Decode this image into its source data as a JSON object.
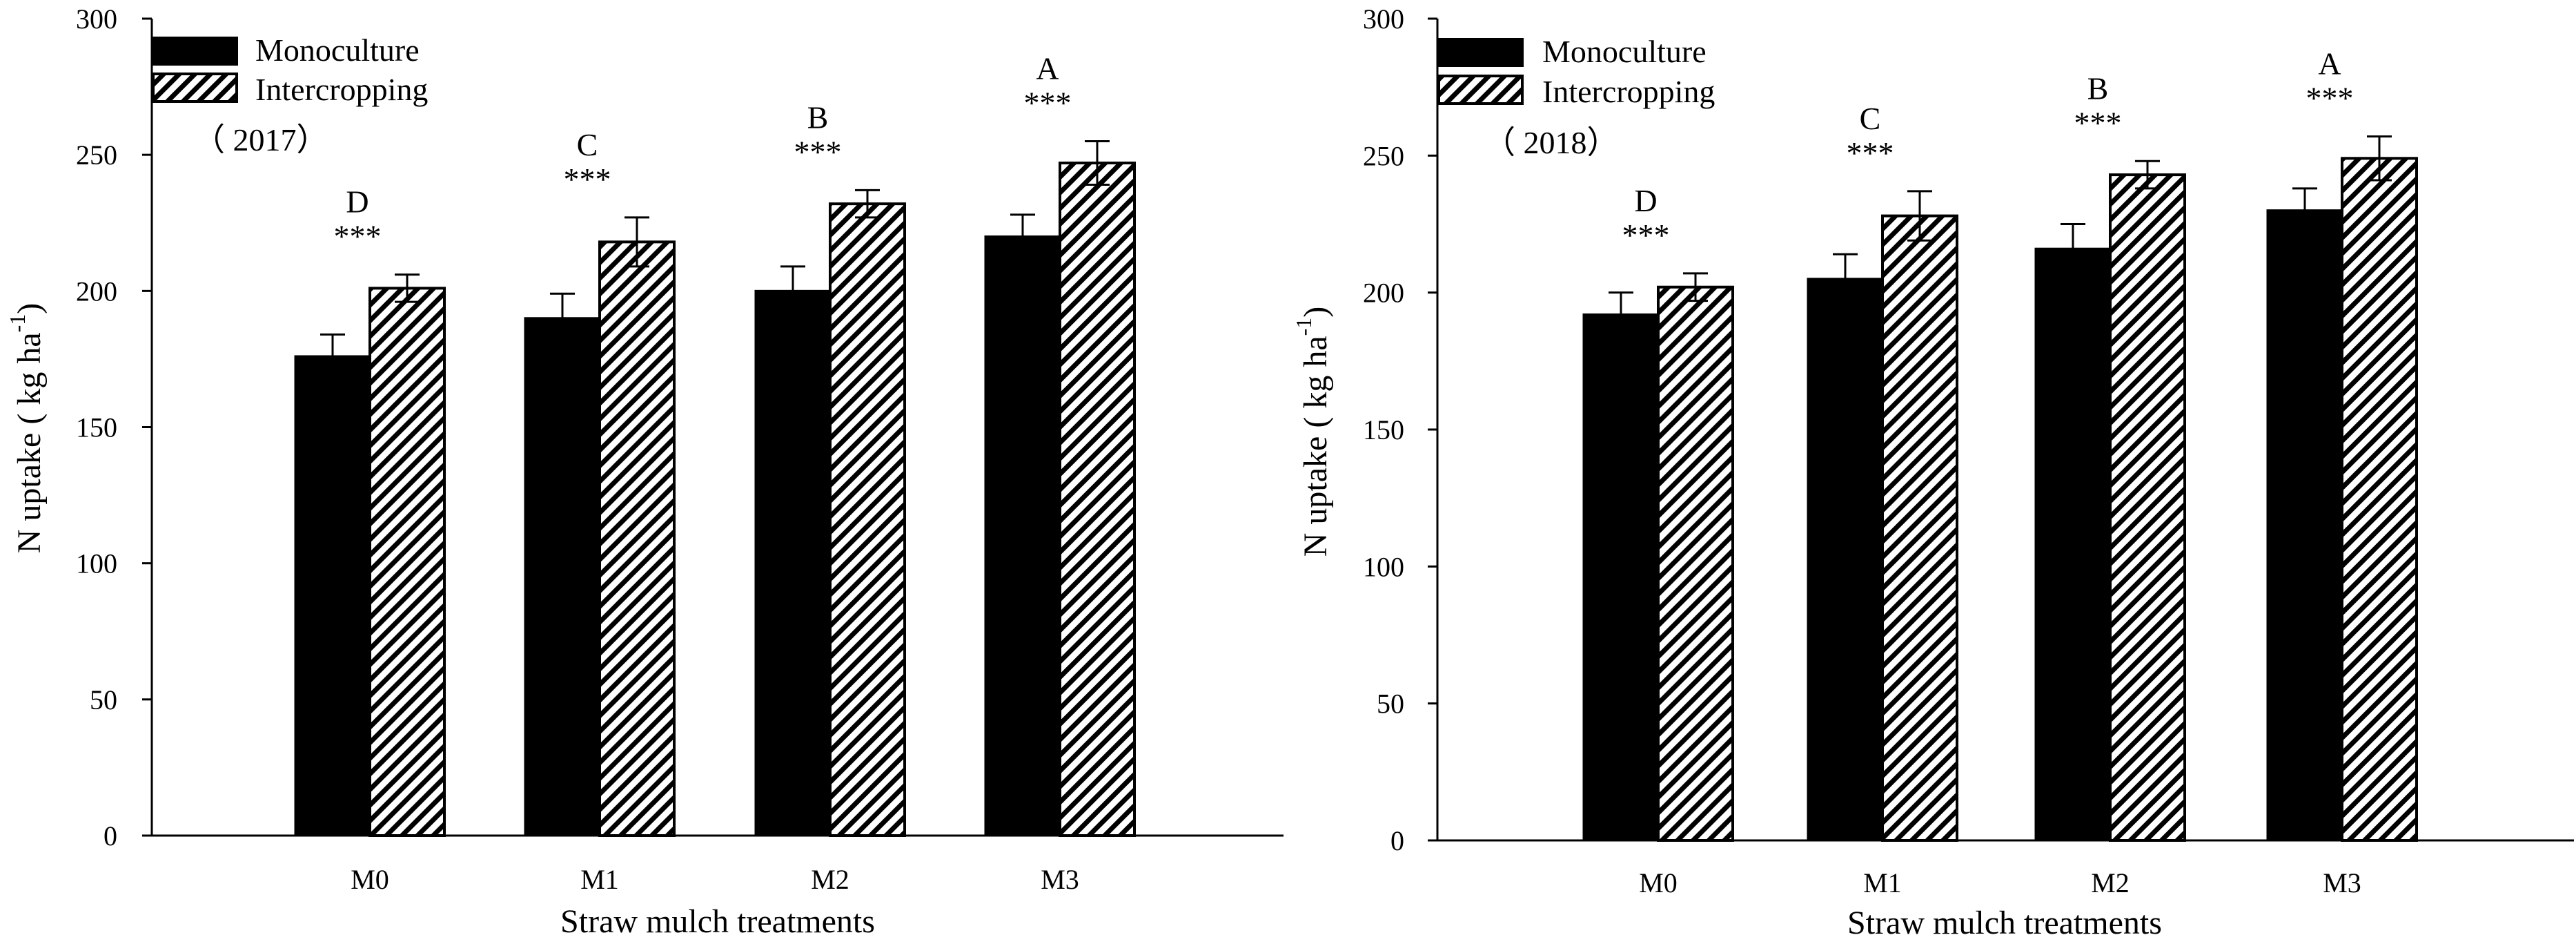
{
  "chart_data": [
    {
      "type": "bar",
      "year_label": "（ 2017）",
      "categories": [
        "M0",
        "M1",
        "M2",
        "M3"
      ],
      "series": [
        {
          "name": "Monoculture",
          "values": [
            176,
            190,
            200,
            220
          ],
          "errors": [
            8,
            9,
            9,
            8
          ]
        },
        {
          "name": "Intercropping",
          "values": [
            201,
            218,
            232,
            247
          ],
          "errors": [
            5,
            9,
            5,
            8
          ]
        }
      ],
      "group_letters": [
        "D",
        "C",
        "B",
        "A"
      ],
      "significance": [
        "***",
        "***",
        "***",
        "***"
      ],
      "xlabel": "Straw mulch treatments",
      "ylabel": "N uptake ( kg ha",
      "ylabel_superscript": "-1",
      "ylabel_close": ")",
      "ylim": [
        0,
        300
      ],
      "yticks": [
        "0",
        "50",
        "100",
        "150",
        "200",
        "250",
        "300"
      ],
      "legend_position": "top-left"
    },
    {
      "type": "bar",
      "year_label": "（ 2018）",
      "categories": [
        "M0",
        "M1",
        "M2",
        "M3"
      ],
      "series": [
        {
          "name": "Monoculture",
          "values": [
            192,
            205,
            216,
            230
          ],
          "errors": [
            8,
            9,
            9,
            8
          ]
        },
        {
          "name": "Intercropping",
          "values": [
            202,
            228,
            243,
            249
          ],
          "errors": [
            5,
            9,
            5,
            8
          ]
        }
      ],
      "group_letters": [
        "D",
        "C",
        "B",
        "A"
      ],
      "significance": [
        "***",
        "***",
        "***",
        "***"
      ],
      "xlabel": "Straw mulch treatments",
      "ylabel": "N uptake ( kg ha",
      "ylabel_superscript": "-1",
      "ylabel_close": ")",
      "ylim": [
        0,
        300
      ],
      "yticks": [
        "0",
        "50",
        "100",
        "150",
        "200",
        "250",
        "300"
      ],
      "legend_position": "top-left"
    }
  ],
  "colors": {
    "monoculture": "#000000",
    "intercropping_hatch": "#000000",
    "background": "#ffffff"
  }
}
